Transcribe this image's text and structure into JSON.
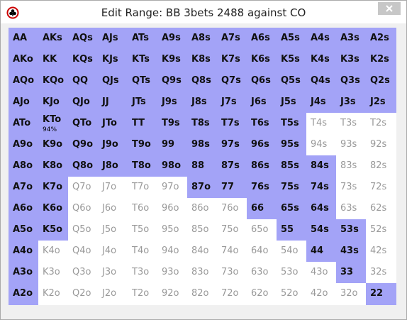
{
  "window": {
    "title": "Edit Range: BB 3bets 2488 against CO"
  },
  "grid": {
    "rows": [
      [
        "AA",
        "AKs",
        "AQs",
        "AJs",
        "ATs",
        "A9s",
        "A8s",
        "A7s",
        "A6s",
        "A5s",
        "A4s",
        "A3s",
        "A2s"
      ],
      [
        "AKo",
        "KK",
        "KQs",
        "KJs",
        "KTs",
        "K9s",
        "K8s",
        "K7s",
        "K6s",
        "K5s",
        "K4s",
        "K3s",
        "K2s"
      ],
      [
        "AQo",
        "KQo",
        "QQ",
        "QJs",
        "QTs",
        "Q9s",
        "Q8s",
        "Q7s",
        "Q6s",
        "Q5s",
        "Q4s",
        "Q3s",
        "Q2s"
      ],
      [
        "AJo",
        "KJo",
        "QJo",
        "JJ",
        "JTs",
        "J9s",
        "J8s",
        "J7s",
        "J6s",
        "J5s",
        "J4s",
        "J3s",
        "J2s"
      ],
      [
        "ATo",
        "KTo",
        "QTo",
        "JTo",
        "TT",
        "T9s",
        "T8s",
        "T7s",
        "T6s",
        "T5s",
        "T4s",
        "T3s",
        "T2s"
      ],
      [
        "A9o",
        "K9o",
        "Q9o",
        "J9o",
        "T9o",
        "99",
        "98s",
        "97s",
        "96s",
        "95s",
        "94s",
        "93s",
        "92s"
      ],
      [
        "A8o",
        "K8o",
        "Q8o",
        "J8o",
        "T8o",
        "98o",
        "88",
        "87s",
        "86s",
        "85s",
        "84s",
        "83s",
        "82s"
      ],
      [
        "A7o",
        "K7o",
        "Q7o",
        "J7o",
        "T7o",
        "97o",
        "87o",
        "77",
        "76s",
        "75s",
        "74s",
        "73s",
        "72s"
      ],
      [
        "A6o",
        "K6o",
        "Q6o",
        "J6o",
        "T6o",
        "96o",
        "86o",
        "76o",
        "66",
        "65s",
        "64s",
        "63s",
        "62s"
      ],
      [
        "A5o",
        "K5o",
        "Q5o",
        "J5o",
        "T5o",
        "95o",
        "85o",
        "75o",
        "65o",
        "55",
        "54s",
        "53s",
        "52s"
      ],
      [
        "A4o",
        "K4o",
        "Q4o",
        "J4o",
        "T4o",
        "94o",
        "84o",
        "74o",
        "64o",
        "54o",
        "44",
        "43s",
        "42s"
      ],
      [
        "A3o",
        "K3o",
        "Q3o",
        "J3o",
        "T3o",
        "93o",
        "83o",
        "73o",
        "63o",
        "53o",
        "43o",
        "33",
        "32s"
      ],
      [
        "A2o",
        "K2o",
        "Q2o",
        "J2o",
        "T2o",
        "92o",
        "82o",
        "72o",
        "62o",
        "52o",
        "42o",
        "32o",
        "22"
      ]
    ],
    "selected": [
      [
        true,
        true,
        true,
        true,
        true,
        true,
        true,
        true,
        true,
        true,
        true,
        true,
        true
      ],
      [
        true,
        true,
        true,
        true,
        true,
        true,
        true,
        true,
        true,
        true,
        true,
        true,
        true
      ],
      [
        true,
        true,
        true,
        true,
        true,
        true,
        true,
        true,
        true,
        true,
        true,
        true,
        true
      ],
      [
        true,
        true,
        true,
        true,
        true,
        true,
        true,
        true,
        true,
        true,
        true,
        true,
        true
      ],
      [
        true,
        true,
        true,
        true,
        true,
        true,
        true,
        true,
        true,
        true,
        false,
        false,
        false
      ],
      [
        true,
        true,
        true,
        true,
        true,
        true,
        true,
        true,
        true,
        true,
        false,
        false,
        false
      ],
      [
        true,
        true,
        true,
        true,
        true,
        true,
        true,
        true,
        true,
        true,
        true,
        false,
        false
      ],
      [
        true,
        true,
        false,
        false,
        false,
        false,
        true,
        true,
        true,
        true,
        true,
        false,
        false
      ],
      [
        true,
        true,
        false,
        false,
        false,
        false,
        false,
        false,
        true,
        true,
        true,
        false,
        false
      ],
      [
        true,
        true,
        false,
        false,
        false,
        false,
        false,
        false,
        false,
        true,
        true,
        true,
        false
      ],
      [
        true,
        false,
        false,
        false,
        false,
        false,
        false,
        false,
        false,
        false,
        true,
        true,
        false
      ],
      [
        true,
        false,
        false,
        false,
        false,
        false,
        false,
        false,
        false,
        false,
        false,
        true,
        false
      ],
      [
        true,
        false,
        false,
        false,
        false,
        false,
        false,
        false,
        false,
        false,
        false,
        false,
        true
      ]
    ],
    "partial": {
      "cell": "KTo",
      "label": "94%"
    },
    "selected_color": "#a3a3f7"
  }
}
